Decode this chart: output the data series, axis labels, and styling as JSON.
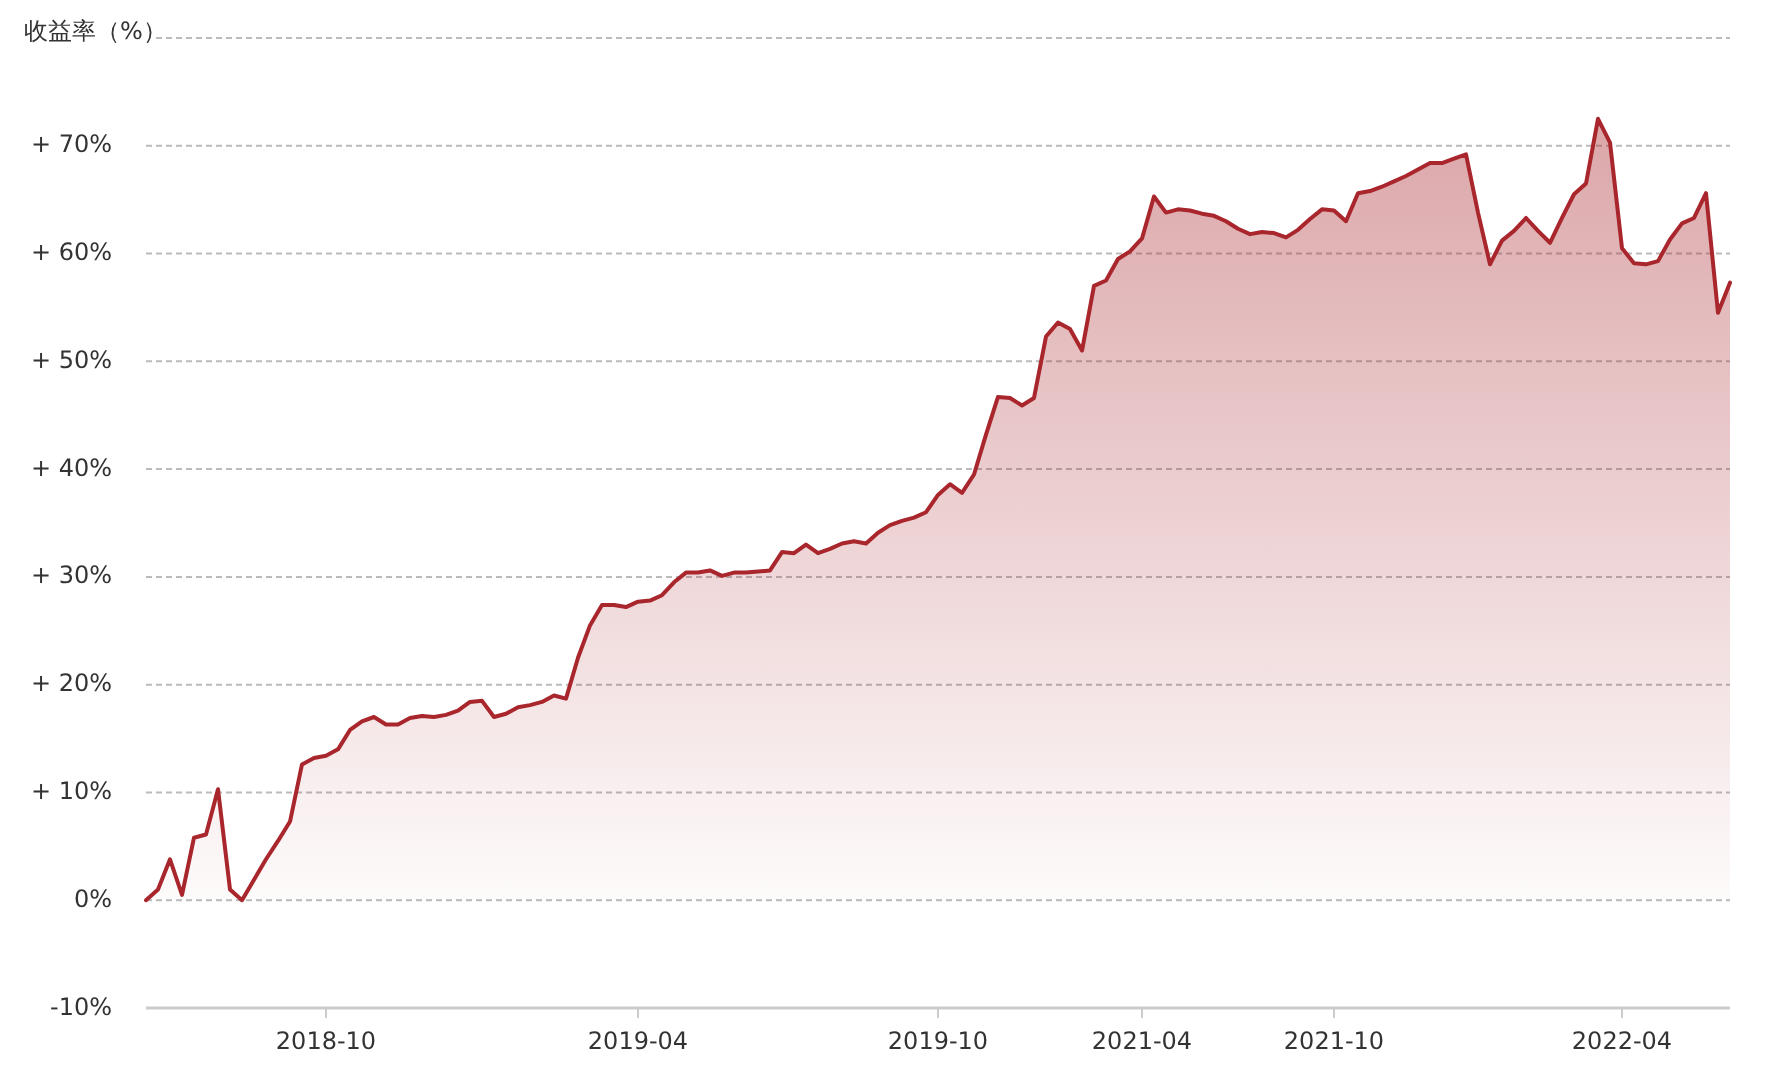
{
  "chart_data": {
    "type": "area",
    "ylabel": "收益率（%）",
    "categories": [
      null,
      null,
      null,
      null,
      null,
      null,
      null,
      null,
      null,
      null,
      null,
      null,
      null,
      null,
      null,
      "2018-10",
      null,
      null,
      null,
      null,
      null,
      null,
      null,
      null,
      null,
      null,
      null,
      null,
      null,
      null,
      null,
      null,
      null,
      null,
      null,
      null,
      null,
      null,
      null,
      null,
      null,
      "2019-04",
      null,
      null,
      null,
      null,
      null,
      null,
      null,
      null,
      null,
      null,
      null,
      null,
      null,
      null,
      null,
      null,
      null,
      null,
      null,
      null,
      null,
      null,
      null,
      null,
      "2019-10",
      null,
      null,
      null,
      null,
      null,
      null,
      null,
      null,
      null,
      null,
      null,
      null,
      null,
      null,
      null,
      null,
      "2021-04",
      null,
      null,
      null,
      null,
      null,
      null,
      null,
      null,
      null,
      null,
      null,
      null,
      null,
      null,
      null,
      "2021-10",
      null,
      null,
      null,
      null,
      null,
      null,
      null,
      null,
      null,
      null,
      null,
      null,
      null,
      null,
      null,
      null,
      null,
      null,
      null,
      null,
      null,
      null,
      null,
      "2022-04",
      null,
      null,
      null,
      null,
      null,
      null,
      null,
      null,
      null
    ],
    "series": [
      {
        "color": "#a8262c",
        "values": [
          0.0,
          1.0,
          3.8,
          0.5,
          5.8,
          6.1,
          10.3,
          1.0,
          0.0,
          1.9,
          3.8,
          5.5,
          7.3,
          12.6,
          13.2,
          13.4,
          14.0,
          15.8,
          16.6,
          17.0,
          16.3,
          16.3,
          16.9,
          17.1,
          17.0,
          17.2,
          17.6,
          18.4,
          18.5,
          17.0,
          17.3,
          17.9,
          18.1,
          18.4,
          19.0,
          18.7,
          22.5,
          25.5,
          27.4,
          27.4,
          27.2,
          27.7,
          27.8,
          28.3,
          29.5,
          30.4,
          30.4,
          30.6,
          30.1,
          30.4,
          30.4,
          30.5,
          30.6,
          32.3,
          32.2,
          33.0,
          32.2,
          32.6,
          33.1,
          33.3,
          33.1,
          34.1,
          34.8,
          35.2,
          35.5,
          36.0,
          37.6,
          38.6,
          37.8,
          39.5,
          43.2,
          46.7,
          46.6,
          45.9,
          46.6,
          52.3,
          53.6,
          53.0,
          51.0,
          57.0,
          57.5,
          59.5,
          60.2,
          61.4,
          65.3,
          63.8,
          64.1,
          64.0,
          63.7,
          63.5,
          63.0,
          62.3,
          61.8,
          62.0,
          61.9,
          61.5,
          62.2,
          63.2,
          64.1,
          64.0,
          63.0,
          65.6,
          65.8,
          66.2,
          66.7,
          67.2,
          67.8,
          68.4,
          68.4,
          68.8,
          69.2,
          63.8,
          59.0,
          61.2,
          62.1,
          63.3,
          62.1,
          61.0,
          63.3,
          65.5,
          66.5,
          72.5,
          70.3,
          60.5,
          59.1,
          59.0,
          59.3,
          61.3,
          62.8,
          63.3,
          65.6,
          54.5,
          57.3
        ]
      }
    ],
    "ylim": [
      -10,
      80
    ],
    "yticks": [
      {
        "value": -10,
        "label": "-10%"
      },
      {
        "value": 0,
        "label": "0%"
      },
      {
        "value": 10,
        "label": "+ 10%"
      },
      {
        "value": 20,
        "label": "+ 20%"
      },
      {
        "value": 30,
        "label": "+ 30%"
      },
      {
        "value": 40,
        "label": "+ 40%"
      },
      {
        "value": 50,
        "label": "+ 50%"
      },
      {
        "value": 60,
        "label": "+ 60%"
      },
      {
        "value": 70,
        "label": "+ 70%"
      },
      {
        "value": 80,
        "label": null
      }
    ],
    "grid": "y"
  }
}
